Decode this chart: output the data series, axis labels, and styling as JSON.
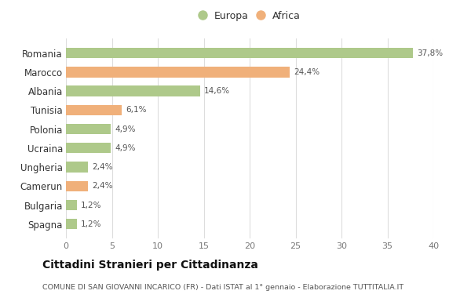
{
  "categories": [
    "Romania",
    "Marocco",
    "Albania",
    "Tunisia",
    "Polonia",
    "Ucraina",
    "Ungheria",
    "Camerun",
    "Bulgaria",
    "Spagna"
  ],
  "values": [
    37.8,
    24.4,
    14.6,
    6.1,
    4.9,
    4.9,
    2.4,
    2.4,
    1.2,
    1.2
  ],
  "labels": [
    "37,8%",
    "24,4%",
    "14,6%",
    "6,1%",
    "4,9%",
    "4,9%",
    "2,4%",
    "2,4%",
    "1,2%",
    "1,2%"
  ],
  "continent": [
    "Europa",
    "Africa",
    "Europa",
    "Africa",
    "Europa",
    "Europa",
    "Europa",
    "Africa",
    "Europa",
    "Europa"
  ],
  "color_europa": "#aec98a",
  "color_africa": "#f0b07a",
  "bg_color": "#ffffff",
  "title": "Cittadini Stranieri per Cittadinanza",
  "subtitle": "COMUNE DI SAN GIOVANNI INCARICO (FR) - Dati ISTAT al 1° gennaio - Elaborazione TUTTITALIA.IT",
  "xlim": [
    0,
    40
  ],
  "xticks": [
    0,
    5,
    10,
    15,
    20,
    25,
    30,
    35,
    40
  ]
}
